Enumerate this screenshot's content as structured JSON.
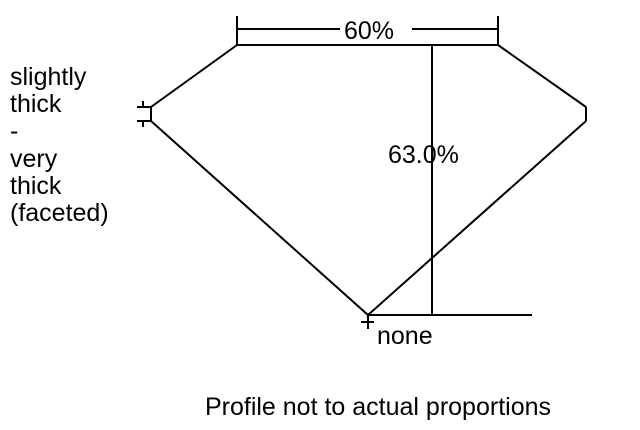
{
  "diagram": {
    "table_label": "60%",
    "depth_label": "63.0%",
    "culet_label": "none",
    "girdle_label_lines": [
      "slightly",
      "thick",
      "-",
      "very",
      "thick",
      "(faceted)"
    ],
    "footnote": "Profile not to actual proportions"
  }
}
